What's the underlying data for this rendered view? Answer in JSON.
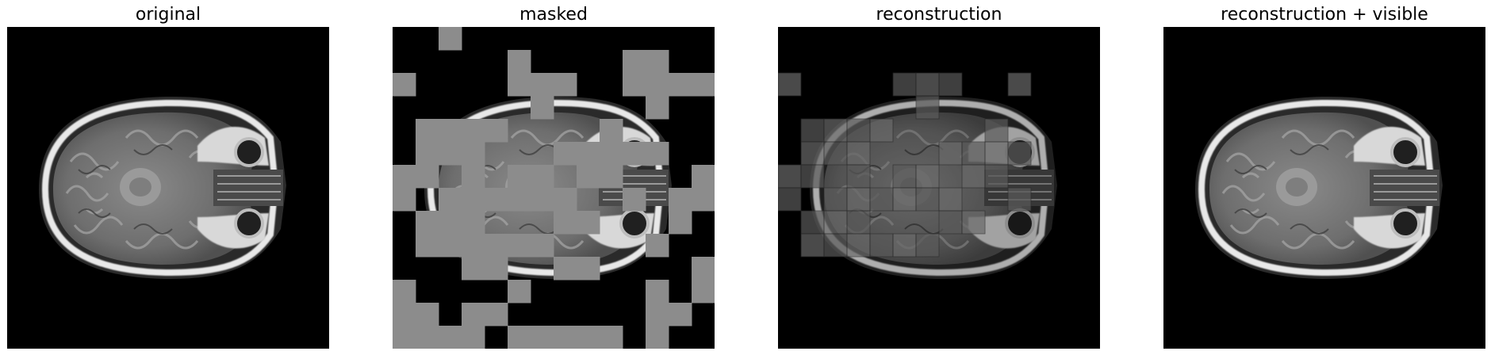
{
  "panels": [
    {
      "id": "original",
      "title": "original"
    },
    {
      "id": "masked",
      "title": "masked"
    },
    {
      "id": "reconstruction",
      "title": "reconstruction"
    },
    {
      "id": "reconstruction-visible",
      "title": "reconstruction + visible"
    }
  ],
  "colors": {
    "background": "#000000",
    "mask": "#8c8c8c",
    "tissue": "#7a7a7a",
    "skull": "#e6e6e6"
  },
  "icons": []
}
